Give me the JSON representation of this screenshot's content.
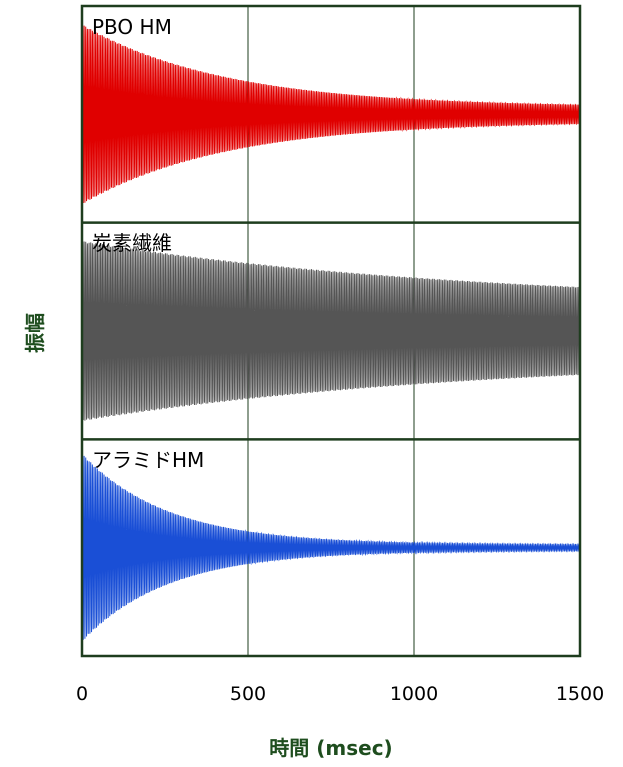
{
  "chart_data": {
    "type": "line",
    "xlabel": "時間 (msec)",
    "ylabel": "振幅",
    "xlim": [
      0,
      1500
    ],
    "x_ticks": [
      "0",
      "500",
      "1000",
      "1500"
    ],
    "grid": true,
    "frame_color": "#1e3d1e",
    "panels": [
      {
        "name": "PBO HM",
        "color": "#e00000",
        "initial_amplitude": 0.88,
        "final_amplitude": 0.07,
        "decay_time_msec": 430,
        "cycles_per_msec": 0.2
      },
      {
        "name": "炭素繊維",
        "color": "#555555",
        "initial_amplitude": 0.88,
        "final_amplitude": 0.25,
        "decay_time_msec": 1200,
        "cycles_per_msec": 0.2
      },
      {
        "name": "アラミドHM",
        "color": "#1a4fd6",
        "initial_amplitude": 0.92,
        "final_amplitude": 0.03,
        "decay_time_msec": 260,
        "cycles_per_msec": 0.2
      }
    ]
  }
}
